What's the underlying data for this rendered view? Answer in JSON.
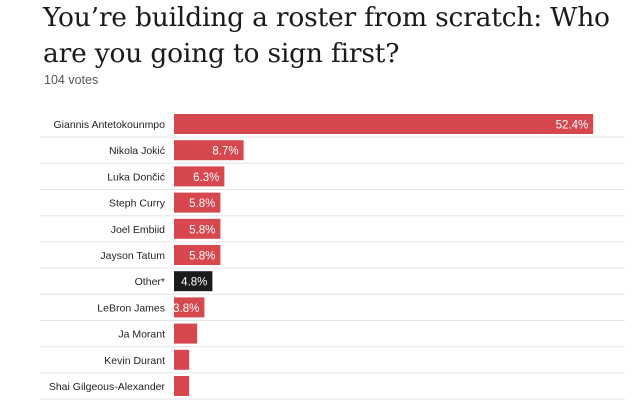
{
  "header": {
    "title": "You’re building a roster from scratch: Who are you going to sign first?",
    "votes": "104 votes"
  },
  "colors": {
    "bar": "#d6474e",
    "highlight_bar": "#1b1b1b",
    "grid": "#e4e4e4",
    "value_text": "#ffffff"
  },
  "chart_data": {
    "type": "bar",
    "orientation": "horizontal",
    "title": "You’re building a roster from scratch: Who are you going to sign first?",
    "subtitle": "104 votes",
    "categories": [
      "Giannis Antetokounmpo",
      "Nikola Jokić",
      "Luka Dončić",
      "Steph Curry",
      "Joel Embiid",
      "Jayson Tatum",
      "Other*",
      "LeBron James",
      "Ja Morant",
      "Kevin Durant",
      "Shai Gilgeous-Alexander"
    ],
    "values": [
      52.4,
      8.7,
      6.3,
      5.8,
      5.8,
      5.8,
      4.8,
      3.8,
      2.9,
      1.9,
      1.9
    ],
    "value_labels": [
      "52.4%",
      "8.7%",
      "6.3%",
      "5.8%",
      "5.8%",
      "5.8%",
      "4.8%",
      "3.8%",
      "",
      "",
      ""
    ],
    "highlight_category": "Other*",
    "unit": "%",
    "xlim": [
      0,
      60
    ],
    "grid": true
  }
}
